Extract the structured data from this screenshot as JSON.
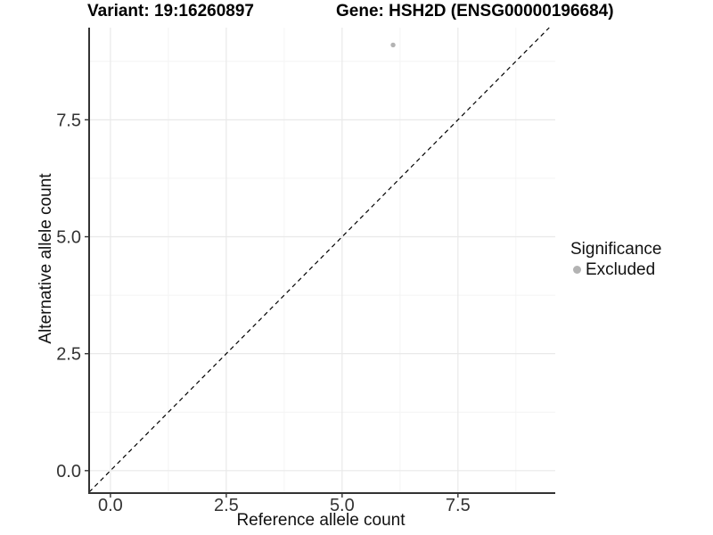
{
  "chart_data": {
    "type": "scatter",
    "titles": {
      "left": "Variant: 19:16260897",
      "right": "Gene: HSH2D (ENSG00000196684)"
    },
    "xlabel": "Reference allele count",
    "ylabel": "Alternative allele count",
    "x_ticks": [
      0.0,
      2.5,
      5.0,
      7.5
    ],
    "x_tick_labels": [
      "0.0",
      "2.5",
      "5.0",
      "7.5"
    ],
    "y_ticks": [
      0.0,
      2.5,
      5.0,
      7.5
    ],
    "y_tick_labels": [
      "0.0",
      "2.5",
      "5.0",
      "7.5"
    ],
    "minor_tick_step": 1.25,
    "xlim": [
      -0.46,
      9.6
    ],
    "ylim": [
      -0.48,
      9.47
    ],
    "grid": true,
    "points": [
      {
        "x": 6.1,
        "y": 9.1,
        "series": "Excluded"
      }
    ],
    "reference_line": {
      "type": "abline",
      "slope": 1,
      "intercept": 0,
      "style": "dashed",
      "color": "#000000"
    },
    "legend": {
      "title": "Significance",
      "position": "right",
      "items": [
        {
          "label": "Excluded",
          "color": "#b3b3b3"
        }
      ]
    },
    "colors": {
      "panel_background": "#ffffff",
      "grid_major": "#e9e9e9",
      "grid_minor": "#f4f4f4",
      "axis_line": "#333333",
      "tick_text": "#333333",
      "point": "#b3b3b3"
    }
  }
}
